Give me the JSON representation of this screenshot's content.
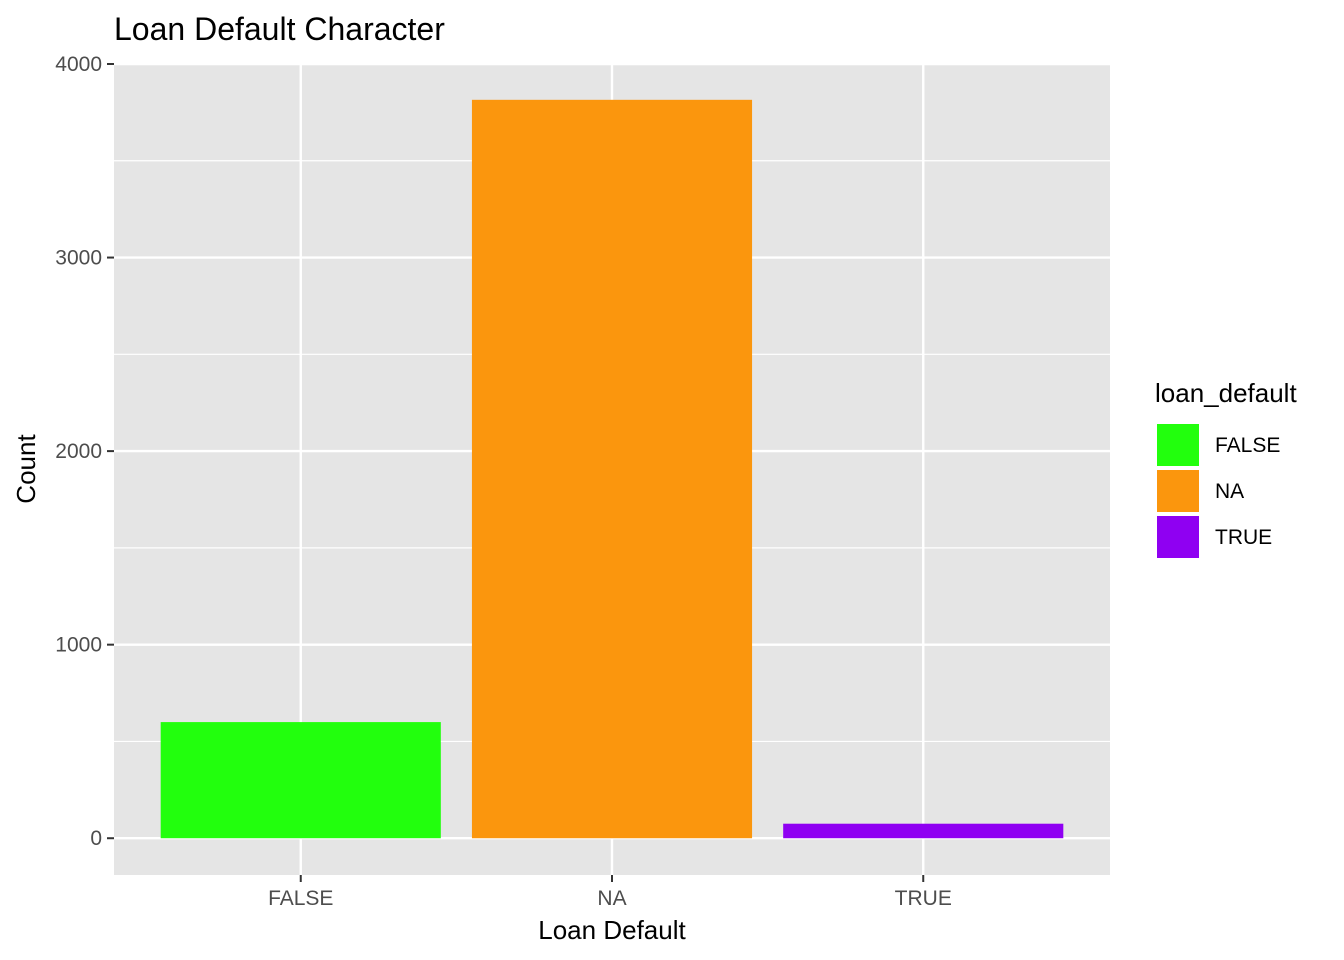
{
  "chart_data": {
    "type": "bar",
    "title": "Loan Default Character",
    "xlabel": "Loan Default",
    "ylabel": "Count",
    "categories": [
      "FALSE",
      "NA",
      "TRUE"
    ],
    "values": [
      600,
      3815,
      75
    ],
    "colors": [
      "#22ff0d",
      "#fb960d",
      "#8f00f2"
    ],
    "ylim": [
      -190,
      4000
    ],
    "yticks": [
      0,
      1000,
      2000,
      3000,
      4000
    ],
    "grid": true,
    "panel_background": "#e5e5e5",
    "legend": {
      "title": "loan_default",
      "position": "right",
      "items": [
        "FALSE",
        "NA",
        "TRUE"
      ]
    }
  }
}
